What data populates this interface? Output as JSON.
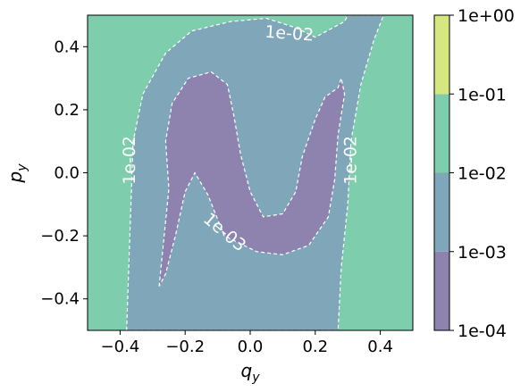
{
  "chart_data": {
    "type": "contourf",
    "xlabel": "q",
    "xlabel_sub": "y",
    "ylabel": "p",
    "ylabel_sub": "y",
    "xlim": [
      -0.5,
      0.5
    ],
    "ylim": [
      -0.5,
      0.5
    ],
    "xticks": [
      {
        "value": -0.4,
        "label": "−0.4"
      },
      {
        "value": -0.2,
        "label": "−0.2"
      },
      {
        "value": 0.0,
        "label": "0.0"
      },
      {
        "value": 0.2,
        "label": "0.2"
      },
      {
        "value": 0.4,
        "label": "0.4"
      }
    ],
    "yticks": [
      {
        "value": -0.4,
        "label": "−0.4"
      },
      {
        "value": -0.2,
        "label": "−0.2"
      },
      {
        "value": 0.0,
        "label": "0.0"
      },
      {
        "value": 0.2,
        "label": "0.2"
      },
      {
        "value": 0.4,
        "label": "0.4"
      }
    ],
    "levels": [
      0.0001,
      0.001,
      0.01,
      0.1,
      1.0
    ],
    "colorbar": {
      "scale": "log",
      "ticks": [
        "1e-04",
        "1e-03",
        "1e-02",
        "1e-01",
        "1e+00"
      ],
      "band_colors": [
        "#8e82af",
        "#7fa7b9",
        "#7ecdad",
        "#d5e77e"
      ]
    },
    "contour_line_color": "#ffffff",
    "contour_labels": [
      {
        "text": "1e-02",
        "x": 0.12,
        "y": 0.44,
        "angle": 4
      },
      {
        "text": "1e-02",
        "x": -0.37,
        "y": 0.04,
        "angle": -90
      },
      {
        "text": "1e-02",
        "x": 0.31,
        "y": 0.04,
        "angle": -90
      },
      {
        "text": "1e-03",
        "x": -0.08,
        "y": -0.19,
        "angle": 40
      }
    ],
    "regions": {
      "band_1e-02_1e-01": [
        [
          -0.5,
          0.5
        ],
        [
          0.5,
          0.5
        ],
        [
          0.5,
          -0.5
        ],
        [
          -0.5,
          -0.5
        ]
      ],
      "band_1e-03_1e-02": [
        [
          -0.38,
          -0.5
        ],
        [
          -0.37,
          -0.2
        ],
        [
          -0.36,
          0.1
        ],
        [
          -0.33,
          0.25
        ],
        [
          -0.26,
          0.38
        ],
        [
          -0.18,
          0.45
        ],
        [
          -0.06,
          0.48
        ],
        [
          0.05,
          0.49
        ],
        [
          0.14,
          0.46
        ],
        [
          0.2,
          0.43
        ],
        [
          0.29,
          0.48
        ],
        [
          0.3,
          0.5
        ],
        [
          0.41,
          0.5
        ],
        [
          0.38,
          0.42
        ],
        [
          0.34,
          0.28
        ],
        [
          0.31,
          0.1
        ],
        [
          0.3,
          -0.1
        ],
        [
          0.28,
          -0.3
        ],
        [
          0.27,
          -0.5
        ]
      ],
      "band_1e-04_1e-03": [
        [
          -0.28,
          -0.36
        ],
        [
          -0.25,
          -0.05
        ],
        [
          -0.26,
          0.1
        ],
        [
          -0.24,
          0.22
        ],
        [
          -0.19,
          0.3
        ],
        [
          -0.12,
          0.32
        ],
        [
          -0.07,
          0.28
        ],
        [
          -0.05,
          0.18
        ],
        [
          -0.03,
          0.06
        ],
        [
          0.0,
          -0.06
        ],
        [
          0.04,
          -0.14
        ],
        [
          0.1,
          -0.13
        ],
        [
          0.14,
          -0.06
        ],
        [
          0.16,
          0.05
        ],
        [
          0.2,
          0.17
        ],
        [
          0.23,
          0.24
        ],
        [
          0.27,
          0.27
        ],
        [
          0.28,
          0.3
        ],
        [
          0.29,
          0.25
        ],
        [
          0.27,
          0.12
        ],
        [
          0.26,
          -0.02
        ],
        [
          0.24,
          -0.14
        ],
        [
          0.18,
          -0.23
        ],
        [
          0.1,
          -0.26
        ],
        [
          0.02,
          -0.25
        ],
        [
          -0.08,
          -0.2
        ],
        [
          -0.13,
          -0.07
        ],
        [
          -0.17,
          0.0
        ],
        [
          -0.2,
          -0.06
        ],
        [
          -0.23,
          -0.2
        ],
        [
          -0.26,
          -0.32
        ]
      ]
    }
  }
}
